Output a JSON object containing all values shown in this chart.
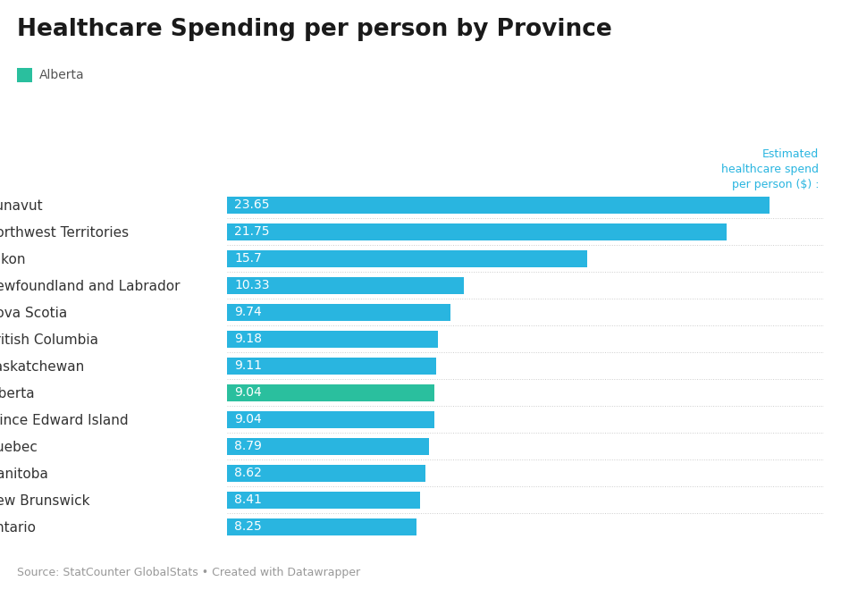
{
  "title": "Healthcare Spending per person by Province",
  "subtitle": "Alberta",
  "subtitle_color": "#2abf9e",
  "annotation_text": "Estimated\nhealthcare spend\nper person ($) :",
  "annotation_color": "#29b5e0",
  "source_text": "Source: StatCounter GlobalStats • Created with Datawrapper",
  "categories": [
    "Nunavut",
    "Northwest Territories",
    "Yukon",
    "Newfoundland and Labrador",
    "Nova Scotia",
    "British Columbia",
    "Saskatchewan",
    "Alberta",
    "Prince Edward Island",
    "Quebec",
    "Manitoba",
    "New Brunswick",
    "Ontario"
  ],
  "values": [
    23.65,
    21.75,
    15.7,
    10.33,
    9.74,
    9.18,
    9.11,
    9.04,
    9.04,
    8.79,
    8.62,
    8.41,
    8.25
  ],
  "bar_color_default": "#29b5e0",
  "bar_color_highlight": "#2abf9e",
  "highlight_category": "Alberta",
  "label_color": "#ffffff",
  "xlim": [
    0,
    26
  ],
  "bar_height": 0.62,
  "background_color": "#ffffff",
  "title_fontsize": 19,
  "label_fontsize": 10,
  "category_fontsize": 11,
  "source_fontsize": 9,
  "annotation_fontsize": 9
}
